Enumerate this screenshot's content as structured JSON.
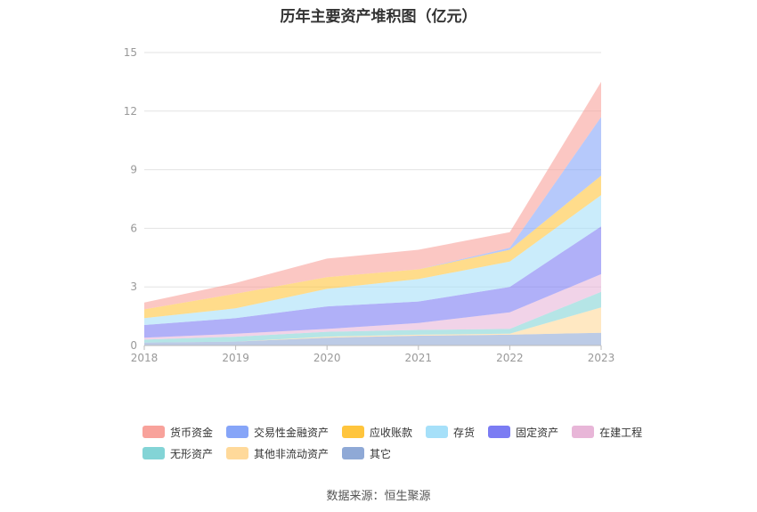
{
  "chart_data": {
    "type": "area",
    "stacked": true,
    "title": "历年主要资产堆积图（亿元）",
    "source": "数据来源：恒生聚源",
    "x": [
      "2018",
      "2019",
      "2020",
      "2021",
      "2022",
      "2023"
    ],
    "ylim": [
      0,
      15
    ],
    "yticks": [
      "0",
      "3",
      "6",
      "9",
      "12",
      "15"
    ],
    "grid": true,
    "legend_position": "bottom",
    "series": [
      {
        "name": "其它",
        "color": "#8fa9d6",
        "values": [
          0.15,
          0.2,
          0.4,
          0.5,
          0.55,
          0.65
        ]
      },
      {
        "name": "其他非流动资产",
        "color": "#ffd99a",
        "values": [
          0.0,
          0.0,
          0.05,
          0.05,
          0.05,
          1.3
        ]
      },
      {
        "name": "无形资产",
        "color": "#83d4d6",
        "values": [
          0.15,
          0.25,
          0.25,
          0.25,
          0.25,
          0.8
        ]
      },
      {
        "name": "在建工程",
        "color": "#e8b6d8",
        "values": [
          0.1,
          0.15,
          0.15,
          0.35,
          0.85,
          0.9
        ]
      },
      {
        "name": "固定资产",
        "color": "#7b7cf3",
        "values": [
          0.65,
          0.8,
          1.15,
          1.1,
          1.3,
          2.45
        ]
      },
      {
        "name": "存货",
        "color": "#a6e0f9",
        "values": [
          0.35,
          0.5,
          0.9,
          1.15,
          1.3,
          1.6
        ]
      },
      {
        "name": "应收账款",
        "color": "#ffc53d",
        "values": [
          0.45,
          0.75,
          0.6,
          0.5,
          0.6,
          1.0
        ]
      },
      {
        "name": "交易性金融资产",
        "color": "#86a5f8",
        "values": [
          0.0,
          0.0,
          0.0,
          0.0,
          0.1,
          3.0
        ]
      },
      {
        "name": "货币资金",
        "color": "#f8a29b",
        "values": [
          0.35,
          0.55,
          0.95,
          1.0,
          0.8,
          1.8
        ]
      }
    ]
  },
  "legend_order": [
    "货币资金",
    "交易性金融资产",
    "应收账款",
    "存货",
    "固定资产",
    "在建工程",
    "无形资产",
    "其他非流动资产",
    "其它"
  ]
}
